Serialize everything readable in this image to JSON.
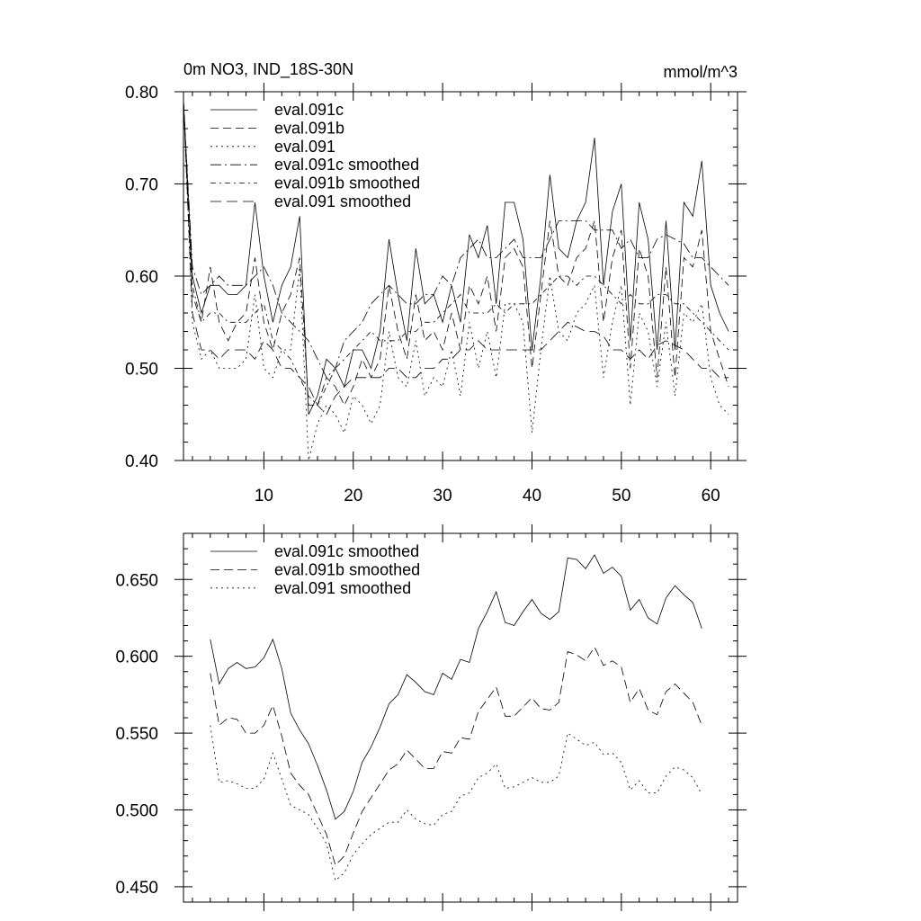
{
  "chart_data": [
    {
      "type": "line",
      "title": "0m NO3, IND_18S-30N",
      "units": "mmol/m^3",
      "xlabel": "",
      "ylabel": "",
      "xlim": [
        1,
        63
      ],
      "ylim": [
        0.4,
        0.8
      ],
      "xticks": [
        10,
        20,
        30,
        40,
        50,
        60
      ],
      "xtick_labels": [
        "10",
        "20",
        "30",
        "40",
        "50",
        "60"
      ],
      "yticks": [
        0.4,
        0.5,
        0.6,
        0.7,
        0.8
      ],
      "ytick_labels": [
        "0.40",
        "0.50",
        "0.60",
        "0.70",
        "0.80"
      ],
      "grid": false,
      "legend_position": "top-left",
      "series": [
        {
          "name": "eval.091c",
          "dash": "",
          "values": [
            0.79,
            0.6,
            0.56,
            0.59,
            0.59,
            0.58,
            0.58,
            0.59,
            0.68,
            0.6,
            0.55,
            0.59,
            0.61,
            0.665,
            0.45,
            0.47,
            0.51,
            0.5,
            0.48,
            0.52,
            0.52,
            0.5,
            0.54,
            0.64,
            0.58,
            0.53,
            0.63,
            0.57,
            0.58,
            0.55,
            0.59,
            0.55,
            0.645,
            0.62,
            0.655,
            0.57,
            0.68,
            0.68,
            0.64,
            0.52,
            0.6,
            0.71,
            0.63,
            0.62,
            0.66,
            0.68,
            0.75,
            0.59,
            0.67,
            0.7,
            0.53,
            0.68,
            0.64,
            0.52,
            0.66,
            0.52,
            0.68,
            0.665,
            0.725,
            0.59,
            0.56,
            0.54
          ]
        },
        {
          "name": "eval.091b",
          "dash": "9,5",
          "values": [
            0.79,
            0.58,
            0.55,
            0.61,
            0.55,
            0.53,
            0.55,
            0.56,
            0.62,
            0.55,
            0.52,
            0.56,
            0.58,
            0.62,
            0.46,
            0.46,
            0.49,
            0.48,
            0.46,
            0.48,
            0.51,
            0.49,
            0.51,
            0.59,
            0.54,
            0.51,
            0.58,
            0.53,
            0.54,
            0.52,
            0.56,
            0.52,
            0.59,
            0.57,
            0.6,
            0.54,
            0.62,
            0.63,
            0.61,
            0.5,
            0.58,
            0.66,
            0.6,
            0.59,
            0.62,
            0.63,
            0.66,
            0.55,
            0.62,
            0.65,
            0.5,
            0.63,
            0.6,
            0.49,
            0.61,
            0.49,
            0.62,
            0.61,
            0.65,
            0.54,
            0.51,
            0.48
          ]
        },
        {
          "name": "eval.091",
          "dash": "2,4",
          "values": [
            0.79,
            0.55,
            0.51,
            0.52,
            0.5,
            0.5,
            0.5,
            0.51,
            0.58,
            0.5,
            0.49,
            0.52,
            0.52,
            0.61,
            0.4,
            0.44,
            0.46,
            0.45,
            0.43,
            0.47,
            0.46,
            0.44,
            0.46,
            0.54,
            0.49,
            0.48,
            0.53,
            0.47,
            0.49,
            0.48,
            0.52,
            0.47,
            0.55,
            0.5,
            0.54,
            0.49,
            0.57,
            0.57,
            0.55,
            0.43,
            0.52,
            0.6,
            0.54,
            0.53,
            0.56,
            0.57,
            0.59,
            0.49,
            0.55,
            0.59,
            0.46,
            0.56,
            0.54,
            0.48,
            0.55,
            0.47,
            0.56,
            0.55,
            0.57,
            0.49,
            0.46,
            0.45
          ]
        },
        {
          "name": "eval.091c smoothed",
          "dash": "12,4,2,4",
          "values": [
            0.79,
            0.61,
            0.58,
            0.59,
            0.6,
            0.59,
            0.59,
            0.59,
            0.6,
            0.61,
            0.59,
            0.56,
            0.55,
            0.54,
            0.53,
            0.51,
            0.49,
            0.5,
            0.53,
            0.54,
            0.55,
            0.57,
            0.58,
            0.59,
            0.58,
            0.57,
            0.57,
            0.58,
            0.58,
            0.6,
            0.59,
            0.62,
            0.63,
            0.64,
            0.62,
            0.62,
            0.63,
            0.64,
            0.62,
            0.62,
            0.62,
            0.64,
            0.66,
            0.66,
            0.66,
            0.66,
            0.65,
            0.65,
            0.65,
            0.63,
            0.64,
            0.62,
            0.62,
            0.64,
            0.645,
            0.64,
            0.635,
            0.62,
            0.62,
            0.61,
            0.6,
            0.59
          ]
        },
        {
          "name": "eval.091b smoothed",
          "dash": "6,4,2,4",
          "values": [
            0.79,
            0.59,
            0.55,
            0.56,
            0.56,
            0.55,
            0.55,
            0.55,
            0.56,
            0.57,
            0.53,
            0.52,
            0.51,
            0.49,
            0.47,
            0.46,
            0.48,
            0.5,
            0.51,
            0.52,
            0.53,
            0.54,
            0.53,
            0.53,
            0.53,
            0.54,
            0.54,
            0.55,
            0.55,
            0.56,
            0.57,
            0.58,
            0.56,
            0.56,
            0.56,
            0.57,
            0.56,
            0.57,
            0.57,
            0.57,
            0.58,
            0.59,
            0.6,
            0.6,
            0.59,
            0.6,
            0.6,
            0.59,
            0.58,
            0.57,
            0.58,
            0.57,
            0.57,
            0.58,
            0.58,
            0.57,
            0.57,
            0.56,
            0.55,
            0.54,
            0.53,
            0.52
          ]
        },
        {
          "name": "eval.091 smoothed",
          "dash": "12,6",
          "values": [
            0.79,
            0.56,
            0.52,
            0.52,
            0.51,
            0.52,
            0.52,
            0.52,
            0.51,
            0.53,
            0.52,
            0.5,
            0.5,
            0.49,
            0.48,
            0.46,
            0.45,
            0.47,
            0.48,
            0.49,
            0.49,
            0.49,
            0.49,
            0.5,
            0.5,
            0.49,
            0.49,
            0.5,
            0.5,
            0.51,
            0.51,
            0.52,
            0.52,
            0.53,
            0.52,
            0.52,
            0.52,
            0.52,
            0.52,
            0.52,
            0.52,
            0.53,
            0.54,
            0.55,
            0.545,
            0.54,
            0.54,
            0.535,
            0.52,
            0.52,
            0.51,
            0.52,
            0.51,
            0.525,
            0.53,
            0.525,
            0.52,
            0.51,
            0.5,
            0.5,
            0.49,
            0.49
          ]
        }
      ]
    },
    {
      "type": "line",
      "title": "",
      "xlabel": "",
      "ylabel": "",
      "xlim": [
        1,
        63
      ],
      "ylim": [
        0.44,
        0.68
      ],
      "yticks": [
        0.45,
        0.5,
        0.55,
        0.6,
        0.65
      ],
      "ytick_labels": [
        "0.450",
        "0.500",
        "0.550",
        "0.600",
        "0.650"
      ],
      "grid": false,
      "legend_position": "top-left",
      "series": [
        {
          "name": "eval.091c smoothed",
          "dash": "",
          "x": [
            4,
            5,
            6,
            7,
            8,
            9,
            10,
            11,
            12,
            13,
            14,
            15,
            16,
            17,
            18,
            19,
            20,
            21,
            22,
            23,
            24,
            25,
            26,
            27,
            28,
            29,
            30,
            31,
            32,
            33,
            34,
            35,
            36,
            37,
            38,
            39,
            40,
            41,
            42,
            43,
            44,
            45,
            46,
            47,
            48,
            49,
            50,
            51,
            52,
            53,
            54,
            55,
            56,
            57,
            58,
            59
          ],
          "values": [
            0.611,
            0.582,
            0.592,
            0.596,
            0.592,
            0.593,
            0.599,
            0.611,
            0.592,
            0.563,
            0.552,
            0.543,
            0.529,
            0.513,
            0.494,
            0.499,
            0.512,
            0.531,
            0.541,
            0.554,
            0.569,
            0.575,
            0.588,
            0.583,
            0.577,
            0.575,
            0.589,
            0.585,
            0.598,
            0.596,
            0.618,
            0.629,
            0.642,
            0.622,
            0.62,
            0.629,
            0.637,
            0.628,
            0.624,
            0.629,
            0.664,
            0.663,
            0.657,
            0.666,
            0.654,
            0.658,
            0.652,
            0.63,
            0.637,
            0.625,
            0.621,
            0.638,
            0.646,
            0.64,
            0.635,
            0.618
          ]
        },
        {
          "name": "eval.091b smoothed",
          "dash": "10,5",
          "x": [
            4,
            5,
            6,
            7,
            8,
            9,
            10,
            11,
            12,
            13,
            14,
            15,
            16,
            17,
            18,
            19,
            20,
            21,
            22,
            23,
            24,
            25,
            26,
            27,
            28,
            29,
            30,
            31,
            32,
            33,
            34,
            35,
            36,
            37,
            38,
            39,
            40,
            41,
            42,
            43,
            44,
            45,
            46,
            47,
            48,
            49,
            50,
            51,
            52,
            53,
            54,
            55,
            56,
            57,
            58,
            59
          ],
          "values": [
            0.589,
            0.555,
            0.56,
            0.559,
            0.55,
            0.55,
            0.555,
            0.568,
            0.548,
            0.524,
            0.516,
            0.51,
            0.497,
            0.484,
            0.464,
            0.47,
            0.485,
            0.499,
            0.508,
            0.517,
            0.526,
            0.53,
            0.539,
            0.533,
            0.527,
            0.527,
            0.538,
            0.537,
            0.547,
            0.546,
            0.564,
            0.572,
            0.58,
            0.561,
            0.561,
            0.567,
            0.573,
            0.566,
            0.565,
            0.57,
            0.603,
            0.601,
            0.597,
            0.606,
            0.594,
            0.597,
            0.593,
            0.57,
            0.579,
            0.565,
            0.562,
            0.577,
            0.582,
            0.576,
            0.57,
            0.555
          ]
        },
        {
          "name": "eval.091 smoothed",
          "dash": "2,4",
          "x": [
            4,
            5,
            6,
            7,
            8,
            9,
            10,
            11,
            12,
            13,
            14,
            15,
            16,
            17,
            18,
            19,
            20,
            21,
            22,
            23,
            24,
            25,
            26,
            27,
            28,
            29,
            30,
            31,
            32,
            33,
            34,
            35,
            36,
            37,
            38,
            39,
            40,
            41,
            42,
            43,
            44,
            45,
            46,
            47,
            48,
            49,
            50,
            51,
            52,
            53,
            54,
            55,
            56,
            57,
            58,
            59
          ],
          "values": [
            0.555,
            0.518,
            0.519,
            0.517,
            0.514,
            0.514,
            0.52,
            0.537,
            0.52,
            0.503,
            0.5,
            0.497,
            0.488,
            0.478,
            0.454,
            0.459,
            0.471,
            0.478,
            0.484,
            0.488,
            0.492,
            0.492,
            0.5,
            0.494,
            0.491,
            0.49,
            0.497,
            0.499,
            0.509,
            0.511,
            0.521,
            0.524,
            0.53,
            0.514,
            0.515,
            0.518,
            0.521,
            0.518,
            0.518,
            0.522,
            0.55,
            0.546,
            0.542,
            0.544,
            0.536,
            0.537,
            0.531,
            0.513,
            0.519,
            0.511,
            0.511,
            0.522,
            0.528,
            0.526,
            0.521,
            0.51
          ]
        }
      ]
    }
  ]
}
